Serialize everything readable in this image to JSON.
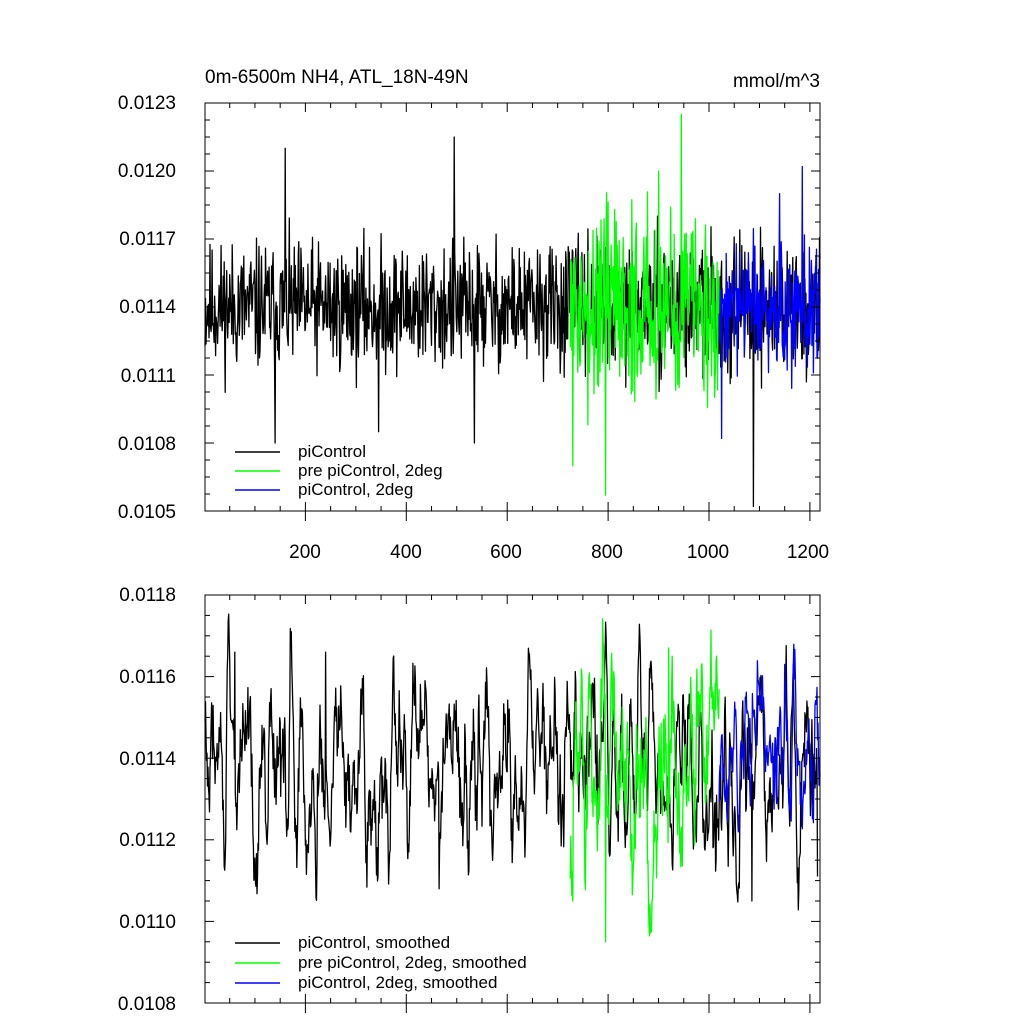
{
  "chart_data": [
    {
      "type": "line",
      "title": "0m-6500m NH4, ATL_18N-49N",
      "units": "mmol/m^3",
      "xlim": [
        1,
        1220
      ],
      "ylim": [
        0.0105,
        0.0123
      ],
      "xticks": [
        200,
        400,
        600,
        800,
        1000,
        1200
      ],
      "xtick_labels": [
        "200",
        "400",
        "600",
        "800",
        "1000",
        "1200"
      ],
      "yticks": [
        0.0105,
        0.0108,
        0.0111,
        0.0114,
        0.0117,
        0.012,
        0.0123
      ],
      "ytick_labels": [
        "0.0105",
        "0.0108",
        "0.0111",
        "0.0114",
        "0.0117",
        "0.0120",
        "0.0123"
      ],
      "legend_placement": "bottom-left",
      "grid": false,
      "series": [
        {
          "name": "piControl",
          "color": "#000000",
          "x_range": [
            1,
            1220
          ],
          "mean": 0.0114,
          "noise": 0.00025,
          "extremes": [
            [
              140,
              0.0108
            ],
            [
              160,
              0.0121
            ],
            [
              345,
              0.01085
            ],
            [
              495,
              0.01215
            ],
            [
              535,
              0.0108
            ],
            [
              1088,
              0.01052
            ]
          ]
        },
        {
          "name": "pre piControl, 2deg",
          "color": "#00ff00",
          "x_range": [
            725,
            1020
          ],
          "mean": 0.0114,
          "noise": 0.00035,
          "extremes": [
            [
              730,
              0.0107
            ],
            [
              795,
              0.01057
            ],
            [
              900,
              0.012
            ],
            [
              945,
              0.01225
            ]
          ]
        },
        {
          "name": "piControl, 2deg",
          "color": "#0000ff",
          "x_range": [
            1020,
            1220
          ],
          "mean": 0.0114,
          "noise": 0.00025,
          "extremes": [
            [
              1025,
              0.01082
            ],
            [
              1140,
              0.0119
            ],
            [
              1185,
              0.01202
            ]
          ]
        }
      ]
    },
    {
      "type": "line",
      "title": "",
      "xlim": [
        1,
        1220
      ],
      "ylim": [
        0.0108,
        0.0118
      ],
      "xticks": [
        200,
        400,
        600,
        800,
        1000,
        1200
      ],
      "yticks": [
        0.0108,
        0.011,
        0.0112,
        0.0114,
        0.0116,
        0.0118
      ],
      "ytick_labels": [
        "0.0108",
        "0.0110",
        "0.0112",
        "0.0114",
        "0.0116",
        "0.0118"
      ],
      "legend_placement": "bottom-left",
      "grid": false,
      "series": [
        {
          "name": "piControl, smoothed",
          "color": "#000000",
          "x_range": [
            1,
            1215
          ],
          "mean": 0.01138,
          "noise": 0.0003,
          "extremes": [
            [
              60,
              0.01166
            ],
            [
              240,
              0.01166
            ],
            [
              465,
              0.01108
            ],
            [
              1085,
              0.01105
            ],
            [
              1215,
              0.01111
            ]
          ]
        },
        {
          "name": "pre piControl, 2deg, smoothed",
          "color": "#00ff00",
          "x_range": [
            725,
            1020
          ],
          "mean": 0.01135,
          "noise": 0.0004,
          "extremes": [
            [
              730,
              0.01105
            ],
            [
              795,
              0.01095
            ],
            [
              920,
              0.01167
            ]
          ]
        },
        {
          "name": "piControl, 2deg, smoothed",
          "color": "#0000ff",
          "x_range": [
            1020,
            1220
          ],
          "mean": 0.0114,
          "noise": 0.00025,
          "extremes": [
            [
              1150,
              0.01163
            ],
            [
              1210,
              0.01153
            ]
          ]
        }
      ]
    }
  ]
}
